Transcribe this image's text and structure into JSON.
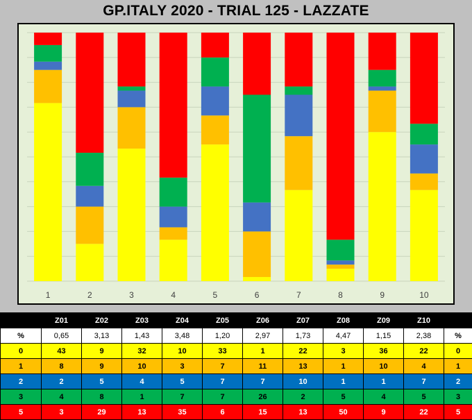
{
  "title": "GP.ITALY 2020 - TRIAL 125 - LAZZATE",
  "colors": {
    "0": "#ffff00",
    "1": "#ffc000",
    "2": "#4472c4",
    "3": "#00b050",
    "5": "#ff0000"
  },
  "chart_data": {
    "type": "bar",
    "stacked": true,
    "categories": [
      "1",
      "2",
      "3",
      "4",
      "5",
      "6",
      "7",
      "8",
      "9",
      "10"
    ],
    "series": [
      {
        "name": "0",
        "values": [
          43,
          9,
          32,
          10,
          33,
          1,
          22,
          3,
          36,
          22
        ]
      },
      {
        "name": "1",
        "values": [
          8,
          9,
          10,
          3,
          7,
          11,
          13,
          1,
          10,
          4
        ]
      },
      {
        "name": "2",
        "values": [
          2,
          5,
          4,
          5,
          7,
          7,
          10,
          1,
          1,
          7
        ]
      },
      {
        "name": "3",
        "values": [
          4,
          8,
          1,
          7,
          7,
          26,
          2,
          5,
          4,
          5
        ]
      },
      {
        "name": "5",
        "values": [
          3,
          29,
          13,
          35,
          6,
          15,
          13,
          50,
          9,
          22
        ]
      }
    ],
    "grid": true
  },
  "table": {
    "zones": [
      "Z01",
      "Z02",
      "Z03",
      "Z04",
      "Z05",
      "Z06",
      "Z07",
      "Z08",
      "Z09",
      "Z10"
    ],
    "pct_label": "%",
    "pct": [
      "0,65",
      "3,13",
      "1,43",
      "3,48",
      "1,20",
      "2,97",
      "1,73",
      "4,47",
      "1,15",
      "2,38"
    ],
    "rows": [
      {
        "label": "0",
        "values": [
          "43",
          "9",
          "32",
          "10",
          "33",
          "1",
          "22",
          "3",
          "36",
          "22"
        ],
        "bg": "#ffff00",
        "fg": "#000000"
      },
      {
        "label": "1",
        "values": [
          "8",
          "9",
          "10",
          "3",
          "7",
          "11",
          "13",
          "1",
          "10",
          "4"
        ],
        "bg": "#ffc000",
        "fg": "#000000"
      },
      {
        "label": "2",
        "values": [
          "2",
          "5",
          "4",
          "5",
          "7",
          "7",
          "10",
          "1",
          "1",
          "7"
        ],
        "bg": "#0070c0",
        "fg": "#ffffff"
      },
      {
        "label": "3",
        "values": [
          "4",
          "8",
          "1",
          "7",
          "7",
          "26",
          "2",
          "5",
          "4",
          "5"
        ],
        "bg": "#00b050",
        "fg": "#000000"
      },
      {
        "label": "5",
        "values": [
          "3",
          "29",
          "13",
          "35",
          "6",
          "15",
          "13",
          "50",
          "9",
          "22"
        ],
        "bg": "#ff0000",
        "fg": "#ffffff"
      }
    ]
  }
}
